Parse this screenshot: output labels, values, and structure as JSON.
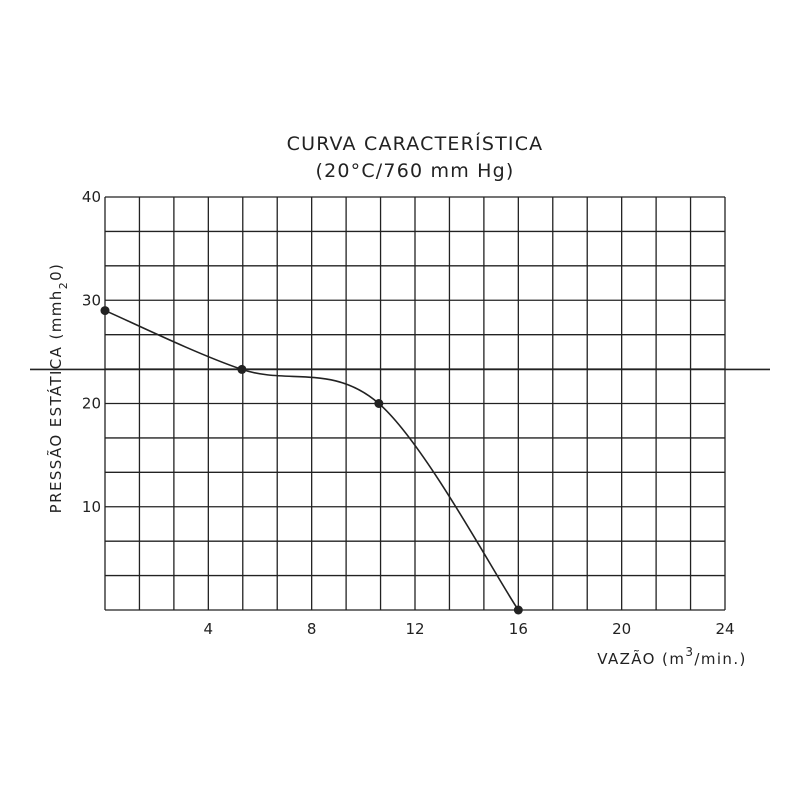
{
  "chart_data": {
    "type": "line",
    "title": "CURVA CARACTERÍSTICA",
    "subtitle": "(20°C/760 mm Hg)",
    "xlabel": {
      "text": "VAZÃO (m",
      "sup": "3",
      "suffix": "/min.)"
    },
    "ylabel": {
      "text": "PRESSÃO ESTÁTICA (mmh",
      "sub": "2",
      "suffix": "0)"
    },
    "xlim": [
      0,
      24
    ],
    "ylim": [
      0,
      40
    ],
    "x_ticks": [
      4,
      8,
      12,
      16,
      20,
      24
    ],
    "y_ticks": [
      10,
      20,
      30,
      40
    ],
    "grid": true,
    "x_grid_step": 1.3333,
    "y_grid_step": 3.3333,
    "reference_line_y": 23.3,
    "series": [
      {
        "points": [
          {
            "x": 0.0,
            "y": 29.0
          },
          {
            "x": 5.3,
            "y": 23.3
          },
          {
            "x": 10.6,
            "y": 20.0
          },
          {
            "x": 16.0,
            "y": 0.0
          }
        ]
      }
    ],
    "colors": {
      "line": "#222222",
      "grid": "#222222",
      "text": "#222222",
      "background": "#ffffff"
    }
  }
}
